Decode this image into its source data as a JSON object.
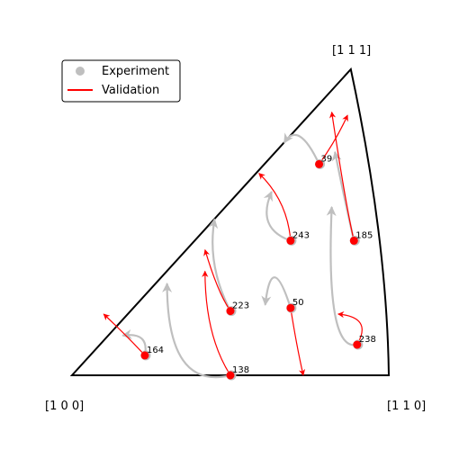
{
  "chart_data": {
    "type": "scatter",
    "title": "",
    "corner_labels": [
      "[1 0 0]",
      "[1 1 0]",
      "[1 1 1]"
    ],
    "legend": {
      "placement": "top-left",
      "entries": [
        {
          "label": "Experiment",
          "marker": "circle",
          "color": "#bfbfbf"
        },
        {
          "label": "Validation",
          "marker": "line",
          "color": "#ff0000"
        }
      ]
    },
    "colors": {
      "experiment": "#bfbfbf",
      "validation": "#ff0000",
      "boundary": "#000000"
    },
    "points": [
      {
        "label": "39",
        "start": [
          0.78,
          0.69
        ]
      },
      {
        "label": "185",
        "start": [
          0.89,
          0.44
        ]
      },
      {
        "label": "243",
        "start": [
          0.69,
          0.44
        ]
      },
      {
        "label": "223",
        "start": [
          0.5,
          0.21
        ]
      },
      {
        "label": "50",
        "start": [
          0.69,
          0.22
        ]
      },
      {
        "label": "238",
        "start": [
          0.9,
          0.1
        ]
      },
      {
        "label": "164",
        "start": [
          0.23,
          0.065
        ]
      },
      {
        "label": "138",
        "start": [
          0.5,
          0.0
        ]
      }
    ],
    "experiment_paths": [
      {
        "label": "39",
        "path": [
          [
            0.78,
            0.69
          ],
          [
            0.72,
            0.78
          ],
          [
            0.67,
            0.76
          ]
        ]
      },
      {
        "label": "185",
        "path": [
          [
            0.89,
            0.44
          ],
          [
            0.86,
            0.58
          ],
          [
            0.83,
            0.73
          ]
        ]
      },
      {
        "label": "243",
        "path": [
          [
            0.69,
            0.44
          ],
          [
            0.62,
            0.5
          ],
          [
            0.63,
            0.6
          ]
        ]
      },
      {
        "label": "223",
        "path": [
          [
            0.5,
            0.21
          ],
          [
            0.45,
            0.36
          ],
          [
            0.45,
            0.51
          ]
        ]
      },
      {
        "label": "50",
        "path": [
          [
            0.69,
            0.22
          ],
          [
            0.64,
            0.32
          ],
          [
            0.61,
            0.23
          ]
        ]
      },
      {
        "label": "238",
        "path": [
          [
            0.9,
            0.1
          ],
          [
            0.83,
            0.2
          ],
          [
            0.82,
            0.55
          ]
        ]
      },
      {
        "label": "164",
        "path": [
          [
            0.23,
            0.065
          ],
          [
            0.22,
            0.12
          ],
          [
            0.16,
            0.13
          ]
        ]
      },
      {
        "label": "138",
        "path": [
          [
            0.5,
            0.0
          ],
          [
            0.35,
            0.05
          ],
          [
            0.3,
            0.3
          ]
        ]
      }
    ],
    "validation_paths": [
      {
        "label": "39",
        "path": [
          [
            0.78,
            0.69
          ],
          [
            0.83,
            0.77
          ],
          [
            0.87,
            0.85
          ]
        ]
      },
      {
        "label": "185",
        "path": [
          [
            0.89,
            0.44
          ],
          [
            0.86,
            0.6
          ],
          [
            0.82,
            0.86
          ]
        ]
      },
      {
        "label": "243",
        "path": [
          [
            0.69,
            0.44
          ],
          [
            0.66,
            0.56
          ],
          [
            0.59,
            0.66
          ]
        ]
      },
      {
        "label": "223",
        "path": [
          [
            0.5,
            0.21
          ],
          [
            0.46,
            0.29
          ],
          [
            0.42,
            0.41
          ]
        ]
      },
      {
        "label": "50",
        "path": [
          [
            0.69,
            0.22
          ],
          [
            0.71,
            0.1
          ],
          [
            0.73,
            0.0
          ]
        ]
      },
      {
        "label": "238",
        "path": [
          [
            0.9,
            0.1
          ],
          [
            0.91,
            0.17
          ],
          [
            0.84,
            0.2
          ]
        ]
      },
      {
        "label": "164",
        "path": [
          [
            0.23,
            0.065
          ],
          [
            0.17,
            0.13
          ],
          [
            0.1,
            0.2
          ]
        ]
      },
      {
        "label": "138",
        "path": [
          [
            0.5,
            0.0
          ],
          [
            0.44,
            0.15
          ],
          [
            0.42,
            0.34
          ]
        ]
      }
    ]
  }
}
